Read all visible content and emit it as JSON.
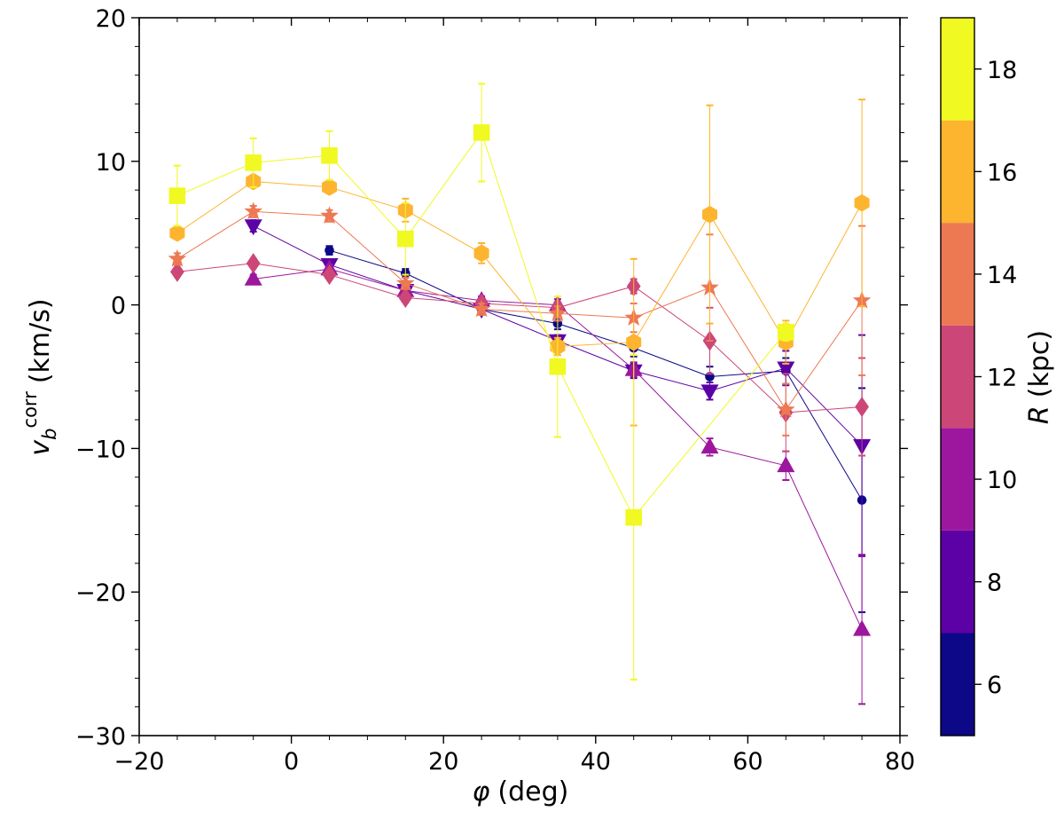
{
  "chart_data": {
    "type": "scatter",
    "title": "",
    "xlabel": "(deg)",
    "xlabel_symbol": "φ",
    "ylabel": "(km/s)",
    "ylabel_symbol": "v",
    "ylabel_subscript": "b",
    "ylabel_superscript": "corr",
    "xlim": [
      -20,
      80
    ],
    "ylim": [
      -30,
      20
    ],
    "xticks": [
      -20,
      0,
      20,
      40,
      60,
      80
    ],
    "yticks": [
      -30,
      -20,
      -10,
      0,
      10,
      20
    ],
    "xtick_labels": [
      "−20",
      "0",
      "20",
      "40",
      "60",
      "80"
    ],
    "ytick_labels": [
      "−30",
      "−20",
      "−10",
      "0",
      "10",
      "20"
    ],
    "grid": false,
    "colorbar": {
      "label": "(kpc)",
      "label_symbol": "R",
      "range": [
        5,
        19
      ],
      "ticks": [
        6,
        8,
        10,
        12,
        14,
        16,
        18
      ],
      "tick_labels": [
        "6",
        "8",
        "10",
        "12",
        "14",
        "16",
        "18"
      ],
      "bins": [
        {
          "from": 5,
          "to": 7,
          "color": "#0d0887"
        },
        {
          "from": 7,
          "to": 9,
          "color": "#5c01a6"
        },
        {
          "from": 9,
          "to": 11,
          "color": "#9c179e"
        },
        {
          "from": 11,
          "to": 13,
          "color": "#cc4778"
        },
        {
          "from": 13,
          "to": 15,
          "color": "#ed7953"
        },
        {
          "from": 15,
          "to": 17,
          "color": "#fdb42f"
        },
        {
          "from": 17,
          "to": 19,
          "color": "#f0f921"
        }
      ]
    },
    "series": [
      {
        "R": 6,
        "color": "#0d0887",
        "marker": "circle",
        "x": [
          5,
          15,
          25,
          35,
          45,
          55,
          65,
          75
        ],
        "y": [
          3.8,
          2.2,
          -0.3,
          -1.3,
          -3.0,
          -5.0,
          -4.6,
          -13.6
        ],
        "yerr": [
          0.3,
          0.3,
          0.3,
          0.4,
          0.6,
          0.7,
          0.9,
          7.8
        ]
      },
      {
        "R": 8,
        "color": "#5c01a6",
        "marker": "triangle-down",
        "x": [
          -5,
          5,
          15,
          25,
          35,
          45,
          55,
          65,
          75
        ],
        "y": [
          5.5,
          2.8,
          1.0,
          -0.3,
          -2.5,
          -4.6,
          -6.0,
          -4.4,
          -9.8
        ],
        "yerr": [
          0.4,
          0.3,
          0.3,
          0.3,
          0.4,
          0.5,
          0.6,
          1.2,
          7.7
        ]
      },
      {
        "R": 10,
        "color": "#9c179e",
        "marker": "triangle-up",
        "x": [
          -5,
          5,
          15,
          25,
          35,
          45,
          55,
          65,
          75
        ],
        "y": [
          1.8,
          2.5,
          1.0,
          0.3,
          0.0,
          -4.5,
          -9.9,
          -11.2,
          -22.6
        ],
        "yerr": [
          0.3,
          0.3,
          0.3,
          0.3,
          0.4,
          0.5,
          0.6,
          1.0,
          5.2
        ]
      },
      {
        "R": 12,
        "color": "#cc4778",
        "marker": "diamond",
        "x": [
          -15,
          -5,
          5,
          15,
          25,
          35,
          45,
          55,
          65,
          75
        ],
        "y": [
          2.3,
          2.9,
          2.1,
          0.5,
          0.1,
          -0.2,
          1.3,
          -2.5,
          -7.5,
          -7.1
        ],
        "yerr": [
          0.3,
          0.3,
          0.3,
          0.3,
          0.3,
          0.4,
          0.5,
          2.3,
          2.7,
          3.4
        ]
      },
      {
        "R": 14,
        "color": "#ed7953",
        "marker": "star",
        "x": [
          -15,
          -5,
          5,
          15,
          25,
          35,
          45,
          55,
          65,
          75
        ],
        "y": [
          3.2,
          6.5,
          6.2,
          1.5,
          -0.3,
          -0.6,
          -0.9,
          1.2,
          -7.3,
          0.3
        ],
        "yerr": [
          0.4,
          0.4,
          0.4,
          0.4,
          0.4,
          0.5,
          1.0,
          3.7,
          1.8,
          5.2
        ]
      },
      {
        "R": 16,
        "color": "#fdb42f",
        "marker": "hexagon",
        "x": [
          -15,
          -5,
          5,
          15,
          25,
          35,
          45,
          55,
          65,
          75
        ],
        "y": [
          5.0,
          8.6,
          8.2,
          6.6,
          3.6,
          -2.9,
          -2.6,
          6.3,
          -2.6,
          7.1
        ],
        "yerr": [
          0.4,
          0.4,
          0.4,
          0.8,
          0.7,
          0.6,
          5.8,
          7.6,
          1.5,
          7.2
        ]
      },
      {
        "R": 18,
        "color": "#f0f921",
        "marker": "square",
        "x": [
          -15,
          -5,
          5,
          15,
          25,
          35,
          45,
          65
        ],
        "y": [
          7.6,
          9.9,
          10.4,
          4.6,
          12.0,
          -4.3,
          -14.8,
          -1.9
        ],
        "yerr": [
          2.1,
          1.7,
          1.7,
          2.5,
          3.4,
          4.9,
          11.3,
          0.6
        ]
      }
    ]
  }
}
